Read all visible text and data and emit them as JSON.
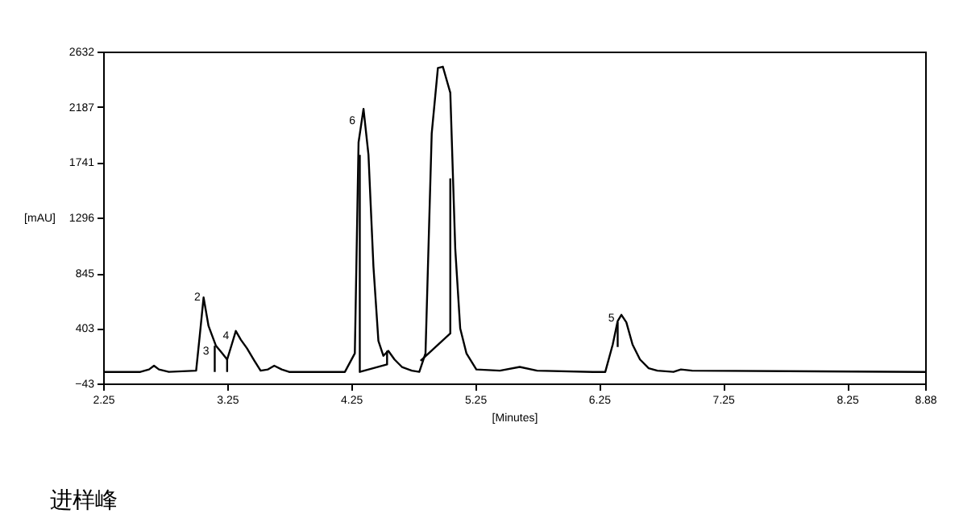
{
  "chart_data": {
    "type": "line",
    "xlabel": "[Minutes]",
    "ylabel": "[mAU]",
    "xlim": [
      2.25,
      8.88
    ],
    "xticks": [
      2.25,
      3.25,
      4.25,
      5.25,
      6.25,
      7.25,
      8.25,
      8.88
    ],
    "ylim": [
      -43,
      2632
    ],
    "yticks": [
      -43,
      403,
      845,
      1296,
      1741,
      2187,
      2632
    ],
    "grid": false,
    "marker": "none",
    "line_style": "solid",
    "series": [
      {
        "color": "#000000",
        "x": [
          2.25,
          2.55,
          2.62,
          2.66,
          2.7,
          2.78,
          3.0,
          3.03,
          3.06,
          3.1,
          3.16,
          3.21,
          3.25,
          3.29,
          3.32,
          3.36,
          3.41,
          3.47,
          3.52,
          3.58,
          3.63,
          3.69,
          3.75,
          4.2,
          4.28,
          4.31,
          4.35,
          4.39,
          4.43,
          4.47,
          4.51,
          4.55,
          4.6,
          4.66,
          4.74,
          4.8,
          4.85,
          4.9,
          4.95,
          4.99,
          5.05,
          5.09,
          5.13,
          5.18,
          5.26,
          5.45,
          5.61,
          5.75,
          6.2,
          6.3,
          6.36,
          6.4,
          6.43,
          6.47,
          6.52,
          6.58,
          6.65,
          6.72,
          6.85,
          6.91,
          7.0,
          8.88
        ],
        "values": [
          50,
          50,
          70,
          100,
          70,
          50,
          60,
          350,
          650,
          420,
          260,
          200,
          150,
          280,
          380,
          310,
          240,
          140,
          60,
          70,
          100,
          70,
          50,
          50,
          200,
          1900,
          2170,
          1800,
          900,
          300,
          180,
          220,
          150,
          90,
          60,
          50,
          200,
          1970,
          2500,
          2510,
          2300,
          1040,
          400,
          200,
          70,
          60,
          90,
          60,
          50,
          50,
          270,
          460,
          510,
          450,
          270,
          150,
          80,
          60,
          50,
          70,
          60,
          50
        ]
      },
      {
        "color": "#000000",
        "x": [
          3.15,
          3.15,
          null,
          3.25,
          3.25,
          null,
          4.32,
          4.32,
          4.54,
          4.54,
          null,
          4.81,
          5.05,
          5.05,
          null,
          6.4,
          6.4
        ],
        "values": [
          260,
          50,
          null,
          150,
          50,
          null,
          1800,
          50,
          110,
          220,
          null,
          140,
          360,
          1610,
          null,
          450,
          250
        ]
      }
    ],
    "annotations": [
      {
        "text": "2",
        "x": 3.01,
        "y": 650
      },
      {
        "text": "3",
        "x": 3.08,
        "y": 215
      },
      {
        "text": "4",
        "x": 3.24,
        "y": 340
      },
      {
        "text": "6",
        "x": 4.26,
        "y": 2075
      },
      {
        "text": "5",
        "x": 6.35,
        "y": 480
      },
      "进样峰"
    ]
  }
}
